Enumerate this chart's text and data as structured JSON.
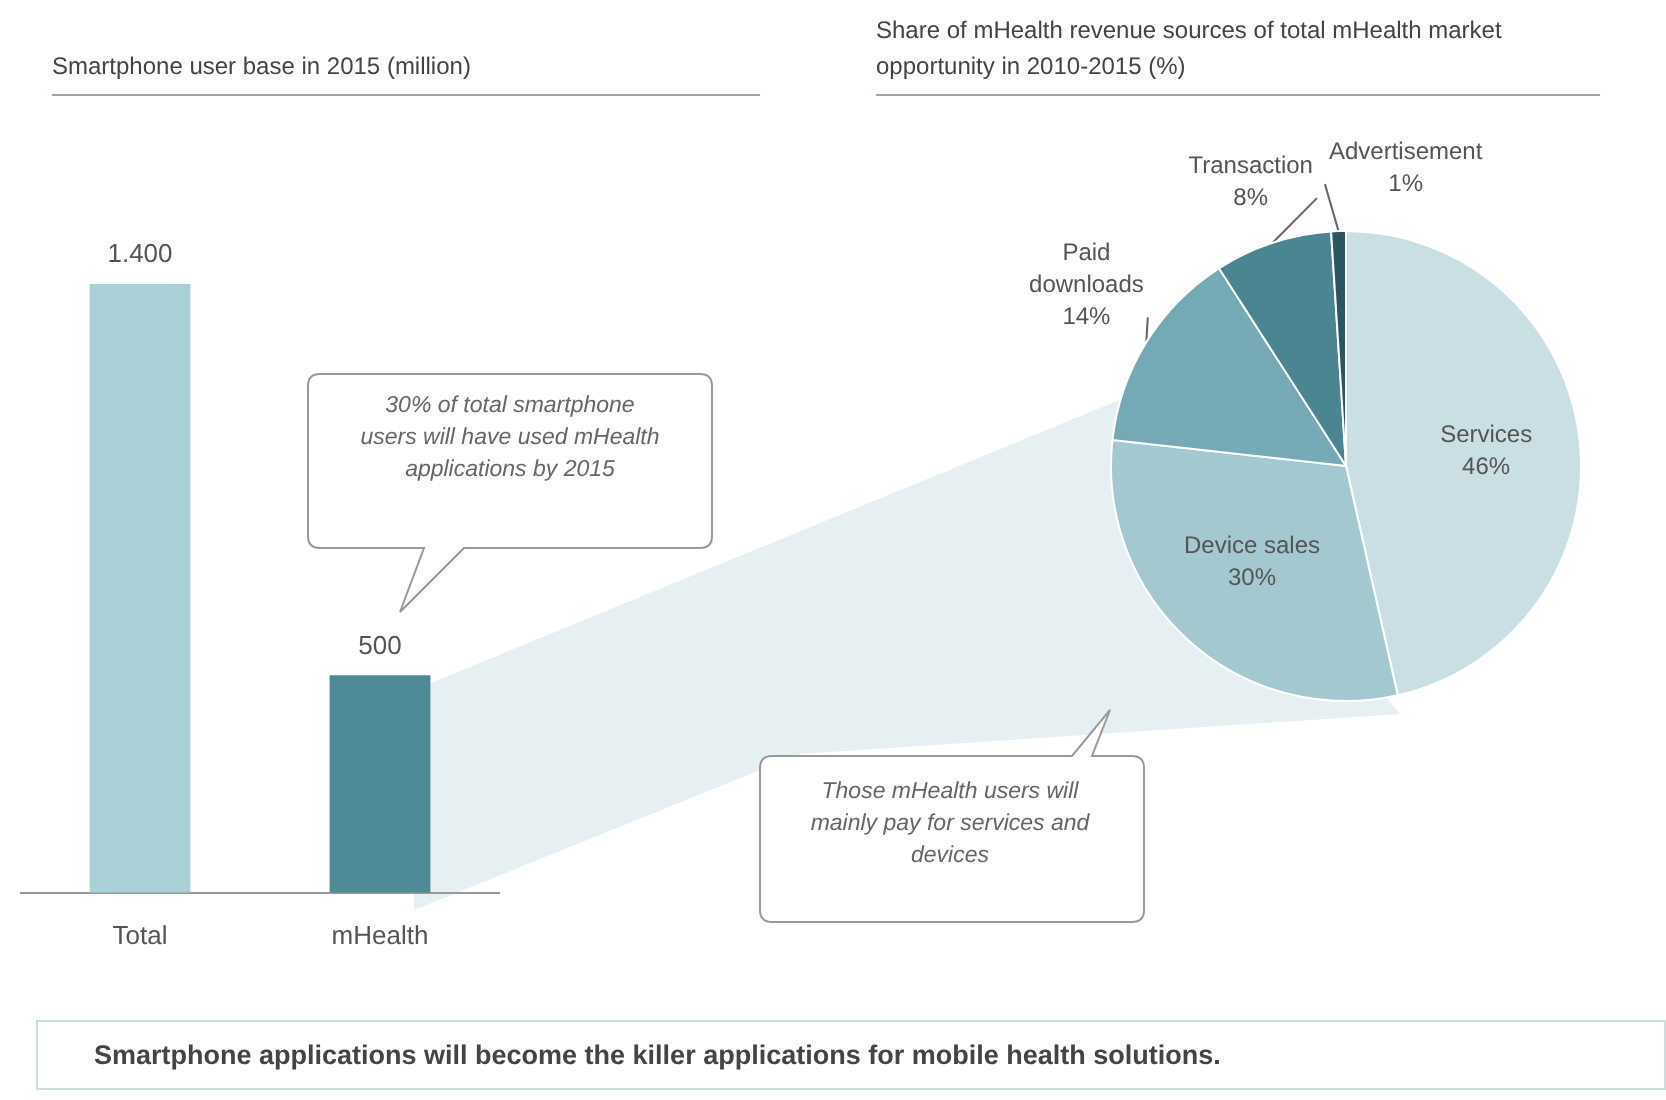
{
  "chart_data": [
    {
      "type": "bar",
      "title": "Smartphone user base in 2015 (million)",
      "categories": [
        "Total",
        "mHealth"
      ],
      "values": [
        1400,
        500
      ],
      "colors": [
        "#a9d0d6",
        "#4e8b96"
      ],
      "value_labels": [
        "1.400",
        "500"
      ],
      "annotations": [
        "30% of total smartphone users will have used mHealth applications by 2015"
      ]
    },
    {
      "type": "pie",
      "title": "Share of mHealth revenue sources of total mHealth market opportunity in 2010-2015 (%)",
      "categories": [
        "Services",
        "Device sales",
        "Paid downloads",
        "Transaction",
        "Advertisement"
      ],
      "values": [
        46,
        30,
        14,
        8,
        1
      ],
      "colors": [
        "#c9dfe4",
        "#a3c8d0",
        "#74a9b5",
        "#4b8592",
        "#2b5560"
      ],
      "value_labels": [
        "46%",
        "30%",
        "14%",
        "8%",
        "1%"
      ],
      "annotations": [
        "Those mHealth users will mainly pay for services and devices",
        "Smartphone applications will become the killer applications for mobile health solutions."
      ]
    }
  ]
}
